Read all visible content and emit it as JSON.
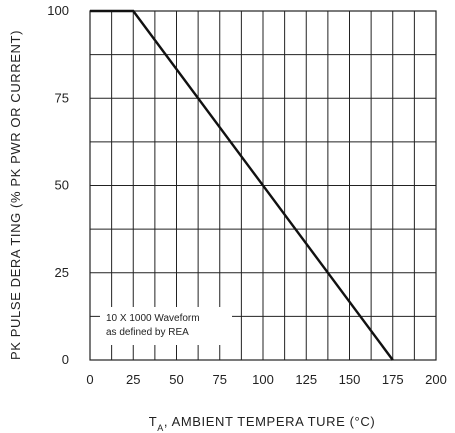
{
  "chart_data": {
    "type": "line",
    "xlabel_sub": "A",
    "xlabel_rest": ", AMBIENT   TEMPERA  TURE   (°C)",
    "xlabel_main": "T",
    "ylabel": "PK  PULSE   DERA  TING  (% PK  PWR  OR  CURRENT)",
    "xlim": [
      0,
      200
    ],
    "ylim": [
      0,
      100
    ],
    "xticks": [
      "0",
      "25",
      "50",
      "75",
      "100",
      "125",
      "150",
      "175",
      "200"
    ],
    "yticks": [
      "0",
      "25",
      "50",
      "75",
      "100"
    ],
    "grid": true,
    "series": [
      {
        "x": [
          0,
          25,
          175
        ],
        "y": [
          100,
          100,
          0
        ]
      }
    ],
    "annotations": [
      "10 X 1000 Waveform",
      "as defined by REA"
    ]
  }
}
